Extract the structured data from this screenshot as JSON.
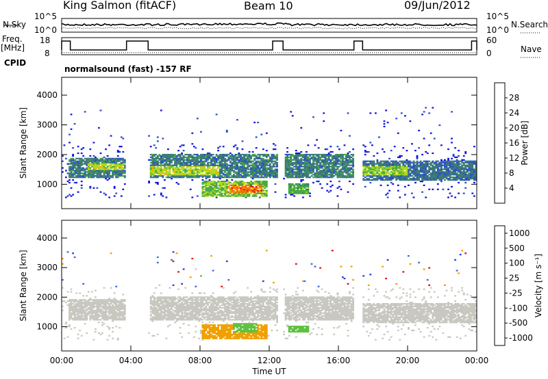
{
  "header": {
    "station": "King Salmon (fitACF)",
    "beam": "Beam 10",
    "date": "09/Jun/2012"
  },
  "noise_panel": {
    "left_label": "N.Sky",
    "right_label": "N.Search",
    "left_ticks": [
      "10^5",
      "10^0"
    ],
    "right_ticks": [
      "10^5",
      "10^0"
    ]
  },
  "freq_panel": {
    "left_label_1": "Freq.",
    "left_label_2": "[MHz]",
    "right_label": "Nave",
    "left_ticks": [
      "18",
      "8"
    ],
    "right_ticks": [
      "60",
      "0"
    ]
  },
  "cpid": {
    "label": "CPID",
    "mode": "normalsound (fast) -157 RF"
  },
  "colors": {
    "power": [
      "#1515e0",
      "#2a50c8",
      "#3c7a78",
      "#44aa44",
      "#b4d820",
      "#f0b000",
      "#f07000",
      "#e81010"
    ],
    "velocity": [
      "#2a3ed0",
      "#3b6ad8",
      "#3a8a3a",
      "#60c040",
      "#c8c8c0",
      "#f0a000",
      "#f07000",
      "#e01010"
    ]
  },
  "chart_data": [
    {
      "type": "heatmap",
      "title": "Power",
      "ylabel": "Slant Range [km]",
      "xlabel": "",
      "x_ticks": [
        "00:00",
        "04:00",
        "08:00",
        "12:00",
        "16:00",
        "20:00",
        "00:00"
      ],
      "x_range_hours": [
        0,
        24
      ],
      "ylim": [
        180,
        4600
      ],
      "y_ticks": [
        1000,
        2000,
        3000,
        4000
      ],
      "colorbar": {
        "label": "Power [dB]",
        "ticks": [
          4,
          8,
          12,
          16,
          20,
          24,
          28
        ],
        "range": [
          0,
          32
        ]
      },
      "data_gaps_hours": [
        [
          3.75,
          5.0
        ],
        [
          12.5,
          12.8
        ],
        [
          16.9,
          17.35
        ]
      ],
      "bands": [
        {
          "t0": 0.4,
          "t1": 3.75,
          "r0": 1200,
          "r1": 1850,
          "power": 10
        },
        {
          "t0": 1.5,
          "t1": 3.6,
          "r0": 1450,
          "r1": 1700,
          "power": 18
        },
        {
          "t0": 5.0,
          "t1": 12.5,
          "r0": 1200,
          "r1": 2000,
          "power": 10
        },
        {
          "t0": 5.0,
          "t1": 9.0,
          "r0": 1300,
          "r1": 1600,
          "power": 18
        },
        {
          "t0": 8.0,
          "t1": 11.8,
          "r0": 550,
          "r1": 1100,
          "power": 16
        },
        {
          "t0": 9.5,
          "t1": 11.5,
          "r0": 700,
          "r1": 950,
          "power": 26
        },
        {
          "t0": 12.8,
          "t1": 16.9,
          "r0": 1200,
          "r1": 2000,
          "power": 10
        },
        {
          "t0": 13.0,
          "t1": 14.2,
          "r0": 650,
          "r1": 1000,
          "power": 14
        },
        {
          "t0": 17.35,
          "t1": 24.0,
          "r0": 1100,
          "r1": 1800,
          "power": 9
        },
        {
          "t0": 17.35,
          "t1": 20.0,
          "r0": 1300,
          "r1": 1600,
          "power": 17
        }
      ]
    },
    {
      "type": "heatmap",
      "title": "Velocity",
      "ylabel": "Slant Range [km]",
      "xlabel": "Time UT",
      "x_ticks": [
        "00:00",
        "04:00",
        "08:00",
        "12:00",
        "16:00",
        "20:00",
        "00:00"
      ],
      "x_range_hours": [
        0,
        24
      ],
      "ylim": [
        180,
        4600
      ],
      "y_ticks": [
        1000,
        2000,
        3000,
        4000
      ],
      "colorbar": {
        "label": "Velocity [m s⁻¹]",
        "ticks": [
          "1000",
          "500",
          "100",
          "25",
          "-25",
          "-100",
          "-500",
          "-1000"
        ]
      },
      "data_gaps_hours": [
        [
          3.75,
          5.0
        ],
        [
          12.5,
          12.8
        ],
        [
          16.9,
          17.35
        ]
      ],
      "bands": [
        {
          "t0": 0.4,
          "t1": 3.75,
          "r0": 1200,
          "r1": 1900,
          "velocity": 0
        },
        {
          "t0": 5.0,
          "t1": 12.5,
          "r0": 1200,
          "r1": 2000,
          "velocity": 0
        },
        {
          "t0": 8.0,
          "t1": 11.8,
          "r0": 550,
          "r1": 1050,
          "velocity": -200
        },
        {
          "t0": 9.8,
          "t1": 11.2,
          "r0": 800,
          "r1": 1100,
          "velocity": 60
        },
        {
          "t0": 12.8,
          "t1": 16.9,
          "r0": 1200,
          "r1": 2000,
          "velocity": 0
        },
        {
          "t0": 13.0,
          "t1": 14.2,
          "r0": 800,
          "r1": 1000,
          "velocity": 60
        },
        {
          "t0": 17.35,
          "t1": 24.0,
          "r0": 1100,
          "r1": 1800,
          "velocity": 0
        }
      ]
    }
  ]
}
